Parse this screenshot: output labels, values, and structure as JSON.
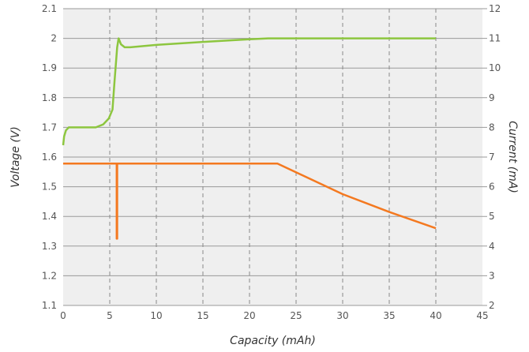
{
  "chart_data": {
    "type": "line",
    "title": "",
    "xlabel": "Capacity (mAh)",
    "ylabel_left": "Voltage (V)",
    "ylabel_right": "Current (mA)",
    "xlim": [
      0,
      45
    ],
    "ylim_left": [
      1.1,
      2.1
    ],
    "ylim_right": [
      2,
      12
    ],
    "x_ticks": [
      0,
      5,
      10,
      15,
      20,
      25,
      30,
      35,
      40,
      45
    ],
    "y_left_ticks": [
      1.1,
      1.2,
      1.3,
      1.4,
      1.5,
      1.6,
      1.7,
      1.8,
      1.9,
      2.0,
      2.1
    ],
    "y_right_ticks": [
      2,
      3,
      4,
      5,
      6,
      7,
      8,
      9,
      10,
      11,
      12
    ],
    "x_tick_labels": [
      "0",
      "5",
      "10",
      "15",
      "20",
      "25",
      "30",
      "35",
      "40",
      "45"
    ],
    "y_left_tick_labels": [
      "1.1",
      "1.2",
      "1.3",
      "1.4",
      "1.5",
      "1.6",
      "1.7",
      "1.8",
      "1.9",
      "2",
      "2.1"
    ],
    "y_right_tick_labels": [
      "2",
      "3",
      "4",
      "5",
      "6",
      "7",
      "8",
      "9",
      "10",
      "11",
      "12"
    ],
    "grid": {
      "vertical": "dashed",
      "horizontal": "solid"
    },
    "background_color": "#efefef",
    "series": [
      {
        "axis": "left",
        "color": "#8dc63f",
        "points": [
          [
            0,
            1.64
          ],
          [
            0.1,
            1.67
          ],
          [
            0.3,
            1.69
          ],
          [
            0.6,
            1.7
          ],
          [
            1.5,
            1.7
          ],
          [
            2.5,
            1.7
          ],
          [
            3.5,
            1.7
          ],
          [
            4.3,
            1.71
          ],
          [
            4.9,
            1.73
          ],
          [
            5.3,
            1.76
          ],
          [
            5.5,
            1.85
          ],
          [
            5.8,
            1.97
          ],
          [
            5.95,
            2.0
          ],
          [
            6.2,
            1.98
          ],
          [
            6.6,
            1.97
          ],
          [
            7.2,
            1.97
          ],
          [
            10,
            1.978
          ],
          [
            15,
            1.988
          ],
          [
            20,
            1.997
          ],
          [
            22,
            2.0
          ],
          [
            30,
            2.0
          ],
          [
            40,
            2.0
          ]
        ]
      },
      {
        "axis": "right",
        "color": "#f47920",
        "points": [
          [
            0,
            6.78
          ],
          [
            5.75,
            6.78
          ],
          [
            5.75,
            4.25
          ],
          [
            5.8,
            4.25
          ],
          [
            5.8,
            6.78
          ],
          [
            23,
            6.78
          ],
          [
            30,
            5.75
          ],
          [
            35,
            5.15
          ],
          [
            40,
            4.6
          ]
        ]
      }
    ]
  }
}
